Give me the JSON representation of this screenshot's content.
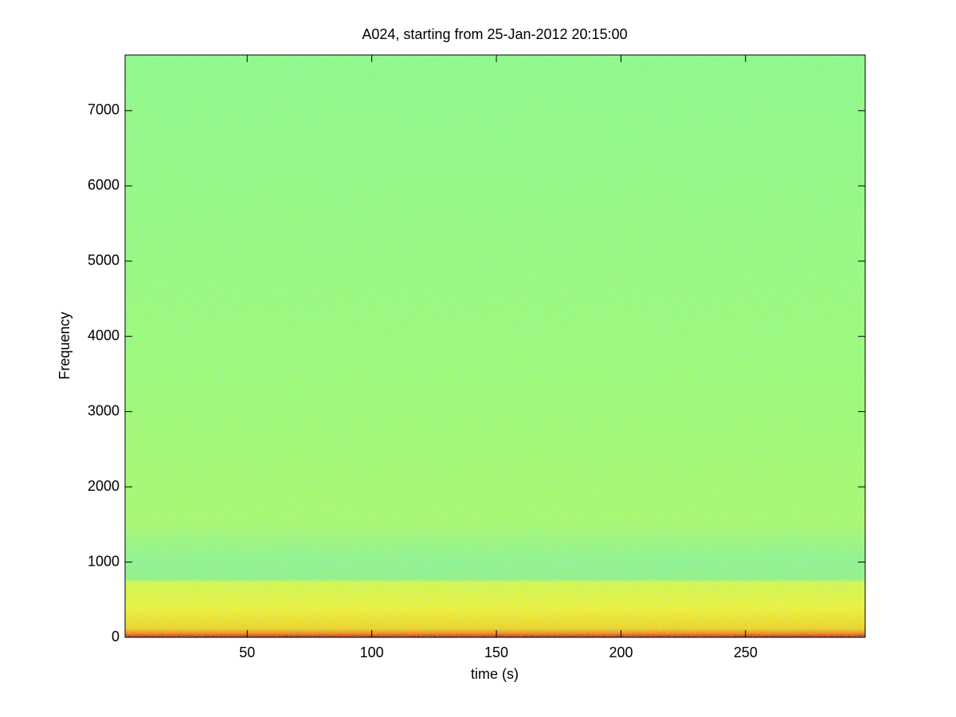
{
  "chart_data": {
    "type": "spectrogram",
    "title": "A024, starting from 25-Jan-2012 20:15:00",
    "xlabel": "time (s)",
    "ylabel": "Frequency",
    "xlim": [
      1,
      298
    ],
    "xticks": [
      50,
      100,
      150,
      200,
      250
    ],
    "ylim": [
      0,
      7740
    ],
    "yticks": [
      0,
      1000,
      2000,
      3000,
      4000,
      5000,
      6000,
      7000
    ],
    "colormap": "jet"
  }
}
